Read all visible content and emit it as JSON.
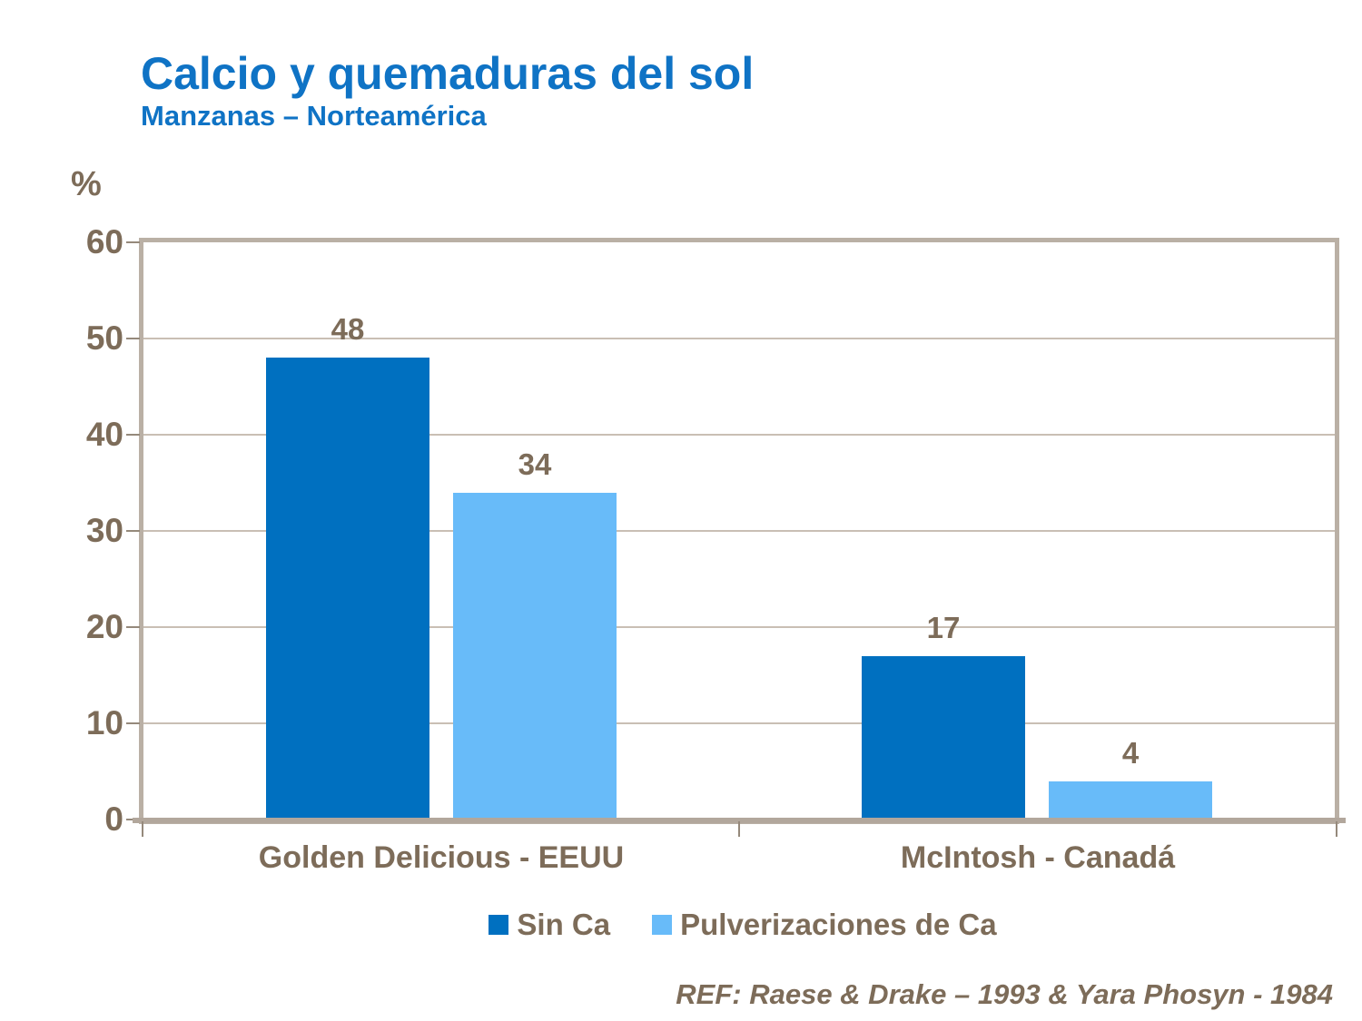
{
  "slide": {
    "title": "Calcio y quemaduras del sol",
    "subtitle": "Manzanas – Norteamérica",
    "y_unit": "%",
    "reference": "REF: Raese & Drake – 1993 & Yara Phosyn - 1984"
  },
  "chart_data": {
    "type": "bar",
    "title": "Calcio y quemaduras del sol",
    "subtitle": "Manzanas – Norteamérica",
    "xlabel": "",
    "ylabel": "%",
    "ylim": [
      0,
      60
    ],
    "yticks": [
      0,
      10,
      20,
      30,
      40,
      50,
      60
    ],
    "grid": true,
    "legend_position": "bottom",
    "categories": [
      "Golden Delicious - EEUU",
      "McIntosh - Canadá"
    ],
    "series": [
      {
        "name": "Sin Ca",
        "color": "#0070C0",
        "values": [
          48,
          17
        ]
      },
      {
        "name": "Pulverizaciones de Ca",
        "color": "#68BBF9",
        "values": [
          34,
          4
        ]
      }
    ],
    "bar_value_labels": [
      [
        48,
        34
      ],
      [
        17,
        4
      ]
    ]
  },
  "colors": {
    "title_blue": "#0F73C5",
    "axis_text_brown": "#7D6C59",
    "plot_border": "#BAB0A5",
    "gridline": "#C9BFB4",
    "axis_line": "#B2A79C",
    "tick": "#95897B",
    "background": "#FFFFFF"
  }
}
